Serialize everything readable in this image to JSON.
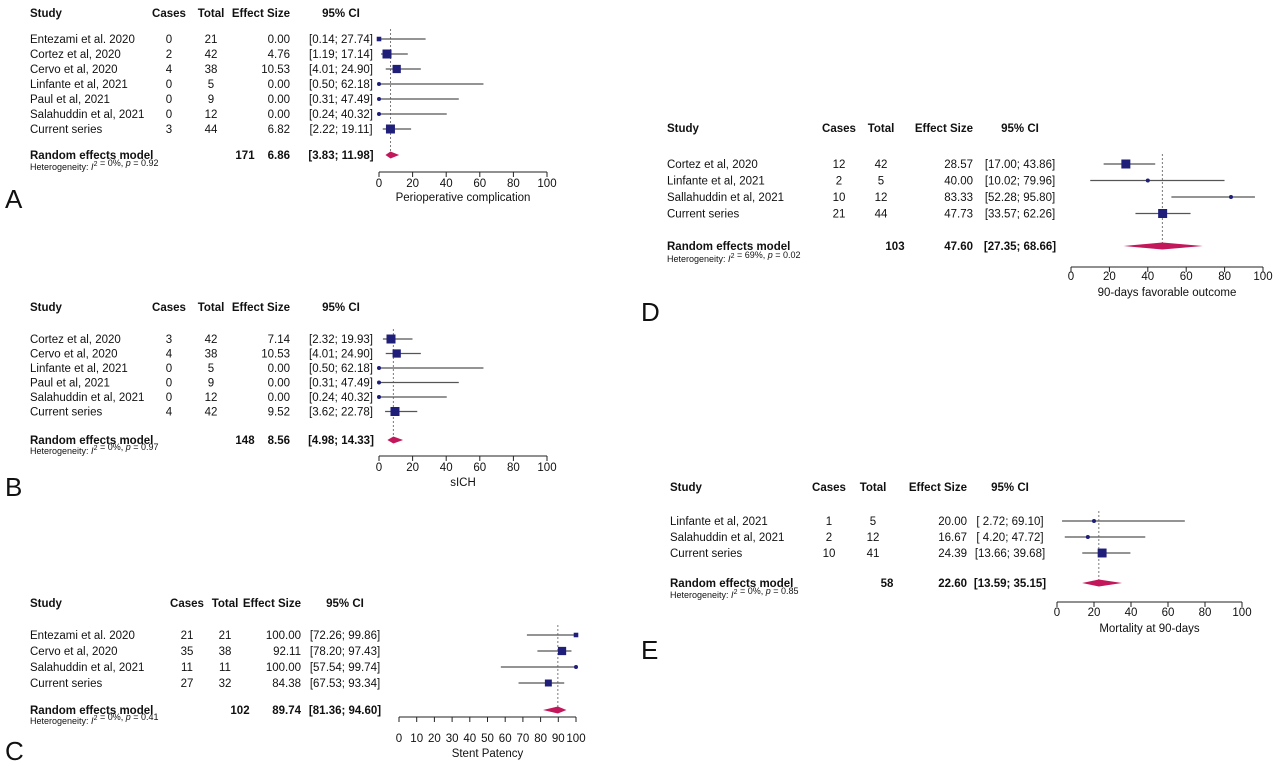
{
  "colors": {
    "marker": "#1f1f7a",
    "diamond": "#c2185b",
    "line": "#555555",
    "dotted": "#7a7a7a"
  },
  "chart_data": [
    {
      "type": "forest",
      "panel": "A",
      "headers": [
        "Study",
        "Cases",
        "Total",
        "Effect Size",
        "95% CI"
      ],
      "studies": [
        {
          "name": "Entezami et al. 2020",
          "cases": "0",
          "total": "21",
          "es_label": "0.00",
          "ci_label": "[0.14; 27.74]",
          "es": 0.0,
          "lo": 0.14,
          "hi": 27.74
        },
        {
          "name": "Cortez et al, 2020",
          "cases": "2",
          "total": "42",
          "es_label": "4.76",
          "ci_label": "[1.19; 17.14]",
          "es": 4.76,
          "lo": 1.19,
          "hi": 17.14
        },
        {
          "name": "Cervo et al, 2020",
          "cases": "4",
          "total": "38",
          "es_label": "10.53",
          "ci_label": "[4.01; 24.90]",
          "es": 10.53,
          "lo": 4.01,
          "hi": 24.9
        },
        {
          "name": "Linfante et al, 2021",
          "cases": "0",
          "total": "5",
          "es_label": "0.00",
          "ci_label": "[0.50; 62.18]",
          "es": 0.0,
          "lo": 0.5,
          "hi": 62.18
        },
        {
          "name": "Paul et al, 2021",
          "cases": "0",
          "total": "9",
          "es_label": "0.00",
          "ci_label": "[0.31; 47.49]",
          "es": 0.0,
          "lo": 0.31,
          "hi": 47.49
        },
        {
          "name": "Salahuddin et al, 2021",
          "cases": "0",
          "total": "12",
          "es_label": "0.00",
          "ci_label": "[0.24; 40.32]",
          "es": 0.0,
          "lo": 0.24,
          "hi": 40.32
        },
        {
          "name": "Current series",
          "cases": "3",
          "total": "44",
          "es_label": "6.82",
          "ci_label": "[2.22; 19.11]",
          "es": 6.82,
          "lo": 2.22,
          "hi": 19.11
        }
      ],
      "model": {
        "label": "Random effects model",
        "total": "171",
        "es_label": "6.86",
        "ci_label": "[3.83; 11.98]",
        "es": 6.86,
        "lo": 3.83,
        "hi": 11.98
      },
      "heterogeneity": {
        "prefix": "Heterogeneity: ",
        "i2": "I",
        "rest": " = 0%, ",
        "p": "p",
        "pval": " = 0.92"
      },
      "xlabel": "Perioperative complication",
      "xlim": [
        0,
        100
      ],
      "ticks": [
        "0",
        "20",
        "40",
        "60",
        "80",
        "100"
      ]
    },
    {
      "type": "forest",
      "panel": "B",
      "headers": [
        "Study",
        "Cases",
        "Total",
        "Effect Size",
        "95% CI"
      ],
      "studies": [
        {
          "name": "Cortez et al, 2020",
          "cases": "3",
          "total": "42",
          "es_label": "7.14",
          "ci_label": "[2.32; 19.93]",
          "es": 7.14,
          "lo": 2.32,
          "hi": 19.93
        },
        {
          "name": "Cervo et al, 2020",
          "cases": "4",
          "total": "38",
          "es_label": "10.53",
          "ci_label": "[4.01; 24.90]",
          "es": 10.53,
          "lo": 4.01,
          "hi": 24.9
        },
        {
          "name": "Linfante et al, 2021",
          "cases": "0",
          "total": "5",
          "es_label": "0.00",
          "ci_label": "[0.50; 62.18]",
          "es": 0.0,
          "lo": 0.5,
          "hi": 62.18
        },
        {
          "name": "Paul et al, 2021",
          "cases": "0",
          "total": "9",
          "es_label": "0.00",
          "ci_label": "[0.31; 47.49]",
          "es": 0.0,
          "lo": 0.31,
          "hi": 47.49
        },
        {
          "name": "Salahuddin et al, 2021",
          "cases": "0",
          "total": "12",
          "es_label": "0.00",
          "ci_label": "[0.24; 40.32]",
          "es": 0.0,
          "lo": 0.24,
          "hi": 40.32
        },
        {
          "name": "Current series",
          "cases": "4",
          "total": "42",
          "es_label": "9.52",
          "ci_label": "[3.62; 22.78]",
          "es": 9.52,
          "lo": 3.62,
          "hi": 22.78
        }
      ],
      "model": {
        "label": "Random effects model",
        "total": "148",
        "es_label": "8.56",
        "ci_label": "[4.98; 14.33]",
        "es": 8.56,
        "lo": 4.98,
        "hi": 14.33
      },
      "heterogeneity": {
        "prefix": "Heterogeneity: ",
        "i2": "I",
        "rest": " = 0%, ",
        "p": "p",
        "pval": " = 0.97"
      },
      "xlabel": "sICH",
      "xlim": [
        0,
        100
      ],
      "ticks": [
        "0",
        "20",
        "40",
        "60",
        "80",
        "100"
      ]
    },
    {
      "type": "forest",
      "panel": "C",
      "headers": [
        "Study",
        "Cases",
        "Total",
        "Effect Size",
        "95% CI"
      ],
      "studies": [
        {
          "name": "Entezami et al. 2020",
          "cases": "21",
          "total": "21",
          "es_label": "100.00",
          "ci_label": "[72.26; 99.86]",
          "es": 100.0,
          "lo": 72.26,
          "hi": 99.86
        },
        {
          "name": "Cervo et al, 2020",
          "cases": "35",
          "total": "38",
          "es_label": "92.11",
          "ci_label": "[78.20; 97.43]",
          "es": 92.11,
          "lo": 78.2,
          "hi": 97.43
        },
        {
          "name": "Salahuddin et al, 2021",
          "cases": "11",
          "total": "11",
          "es_label": "100.00",
          "ci_label": "[57.54; 99.74]",
          "es": 100.0,
          "lo": 57.54,
          "hi": 99.74
        },
        {
          "name": "Current series",
          "cases": "27",
          "total": "32",
          "es_label": "84.38",
          "ci_label": "[67.53; 93.34]",
          "es": 84.38,
          "lo": 67.53,
          "hi": 93.34
        }
      ],
      "model": {
        "label": "Random effects model",
        "total": "102",
        "es_label": "89.74",
        "ci_label": "[81.36; 94.60]",
        "es": 89.74,
        "lo": 81.36,
        "hi": 94.6
      },
      "heterogeneity": {
        "prefix": "Heterogeneity: ",
        "i2": "I",
        "rest": " = 0%, ",
        "p": "p",
        "pval": " = 0.41"
      },
      "xlabel": "Stent Patency",
      "xlim": [
        0,
        100
      ],
      "ticks": [
        "0",
        "10",
        "20",
        "30",
        "40",
        "50",
        "60",
        "70",
        "80",
        "90",
        "100"
      ]
    },
    {
      "type": "forest",
      "panel": "D",
      "headers": [
        "Study",
        "Cases",
        "Total",
        "Effect Size",
        "95% CI"
      ],
      "studies": [
        {
          "name": "Cortez et al, 2020",
          "cases": "12",
          "total": "42",
          "es_label": "28.57",
          "ci_label": "[17.00; 43.86]",
          "es": 28.57,
          "lo": 17.0,
          "hi": 43.86
        },
        {
          "name": "Linfante et al, 2021",
          "cases": "2",
          "total": "5",
          "es_label": "40.00",
          "ci_label": "[10.02; 79.96]",
          "es": 40.0,
          "lo": 10.02,
          "hi": 79.96
        },
        {
          "name": "Sallahuddin et al, 2021",
          "cases": "10",
          "total": "12",
          "es_label": "83.33",
          "ci_label": "[52.28; 95.80]",
          "es": 83.33,
          "lo": 52.28,
          "hi": 95.8
        },
        {
          "name": "Current series",
          "cases": "21",
          "total": "44",
          "es_label": "47.73",
          "ci_label": "[33.57; 62.26]",
          "es": 47.73,
          "lo": 33.57,
          "hi": 62.26
        }
      ],
      "model": {
        "label": "Random effects model",
        "total": "103",
        "es_label": "47.60",
        "ci_label": "[27.35; 68.66]",
        "es": 47.6,
        "lo": 27.35,
        "hi": 68.66
      },
      "heterogeneity": {
        "prefix": "Heterogeneity: ",
        "i2": "I",
        "rest": " = 69%, ",
        "p": "p",
        "pval": " = 0.02"
      },
      "xlabel": "90-days favorable outcome",
      "xlim": [
        0,
        100
      ],
      "ticks": [
        "0",
        "20",
        "40",
        "60",
        "80",
        "100"
      ]
    },
    {
      "type": "forest",
      "panel": "E",
      "headers": [
        "Study",
        "Cases",
        "Total",
        "Effect Size",
        "95% CI"
      ],
      "studies": [
        {
          "name": "Linfante et al, 2021",
          "cases": "1",
          "total": "5",
          "es_label": "20.00",
          "ci_label": "[ 2.72; 69.10]",
          "es": 20.0,
          "lo": 2.72,
          "hi": 69.1
        },
        {
          "name": "Salahuddin et al, 2021",
          "cases": "2",
          "total": "12",
          "es_label": "16.67",
          "ci_label": "[ 4.20; 47.72]",
          "es": 16.67,
          "lo": 4.2,
          "hi": 47.72
        },
        {
          "name": "Current series",
          "cases": "10",
          "total": "41",
          "es_label": "24.39",
          "ci_label": "[13.66; 39.68]",
          "es": 24.39,
          "lo": 13.66,
          "hi": 39.68
        }
      ],
      "model": {
        "label": "Random effects model",
        "total": "58",
        "es_label": "22.60",
        "ci_label": "[13.59; 35.15]",
        "es": 22.6,
        "lo": 13.59,
        "hi": 35.15
      },
      "heterogeneity": {
        "prefix": "Heterogeneity: ",
        "i2": "I",
        "rest": " = 0%, ",
        "p": "p",
        "pval": " = 0.85"
      },
      "xlabel": "Mortality at 90-days",
      "xlim": [
        0,
        100
      ],
      "ticks": [
        "0",
        "20",
        "40",
        "60",
        "80",
        "100"
      ]
    }
  ]
}
